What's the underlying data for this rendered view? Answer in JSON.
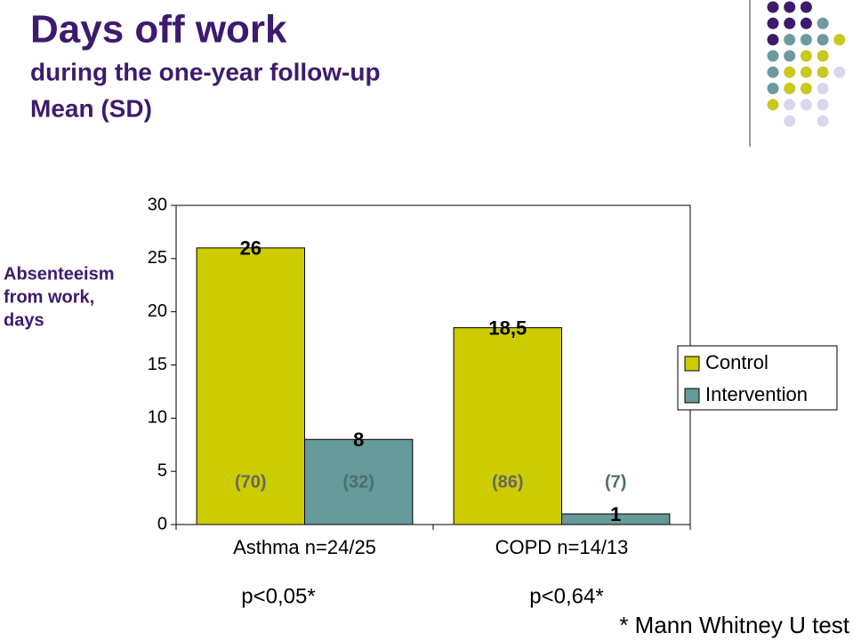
{
  "chart_data": {
    "type": "bar",
    "title": "Days off work",
    "subtitle": [
      "during the one-year follow-up",
      "Mean (SD)"
    ],
    "ylabel": [
      "Absenteeism",
      "from work,",
      "days"
    ],
    "categories": [
      "Asthma n=24/25",
      "COPD n=14/13"
    ],
    "series": [
      {
        "name": "Control",
        "color": "#cccc00",
        "values": [
          26,
          18.5
        ],
        "value_labels": [
          "26",
          "18,5"
        ],
        "sd_labels": [
          "(70)",
          "(86)"
        ]
      },
      {
        "name": "Intervention",
        "color": "#669999",
        "values": [
          8,
          1
        ],
        "value_labels": [
          "8",
          "1"
        ],
        "sd_labels": [
          "(32)",
          "(7)"
        ]
      }
    ],
    "ylim": [
      0,
      30
    ],
    "yticks": [
      0,
      5,
      10,
      15,
      20,
      25,
      30
    ],
    "grid": false,
    "legend": "right",
    "annotations": [
      "p<0,05*",
      "p<0,64*",
      "* Mann Whitney U test"
    ]
  }
}
